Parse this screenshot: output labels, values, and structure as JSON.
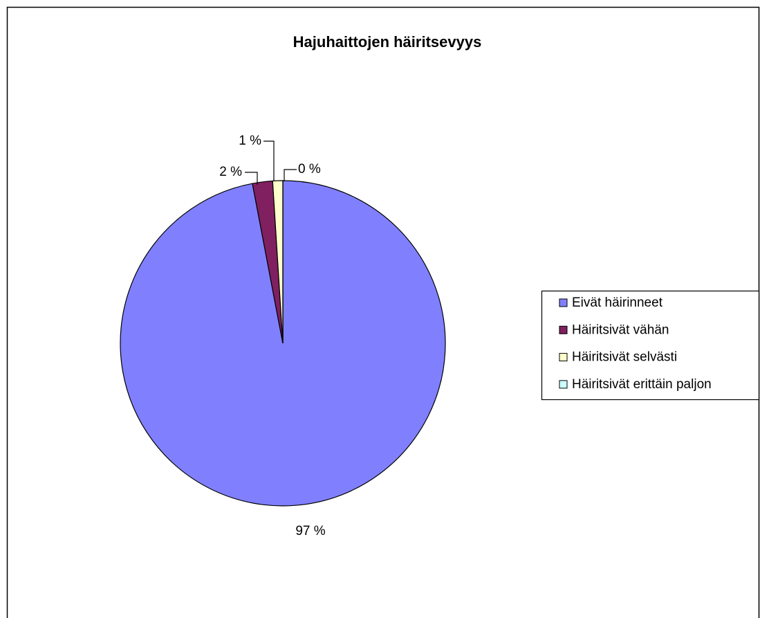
{
  "chart_data": {
    "type": "pie",
    "title": "Hajuhaittojen häiritsevyys",
    "categories": [
      "Eivät häirinneet",
      "Häiritsivät vähän",
      "Häiritsivät selvästi",
      "Häiritsivät erittäin paljon"
    ],
    "values": [
      97,
      2,
      1,
      0
    ],
    "value_labels": [
      "97 %",
      "2 %",
      "1 %",
      "0 %"
    ],
    "colors": [
      "#8080ff",
      "#802060",
      "#ffffcc",
      "#ccffff"
    ],
    "legend": "right"
  }
}
